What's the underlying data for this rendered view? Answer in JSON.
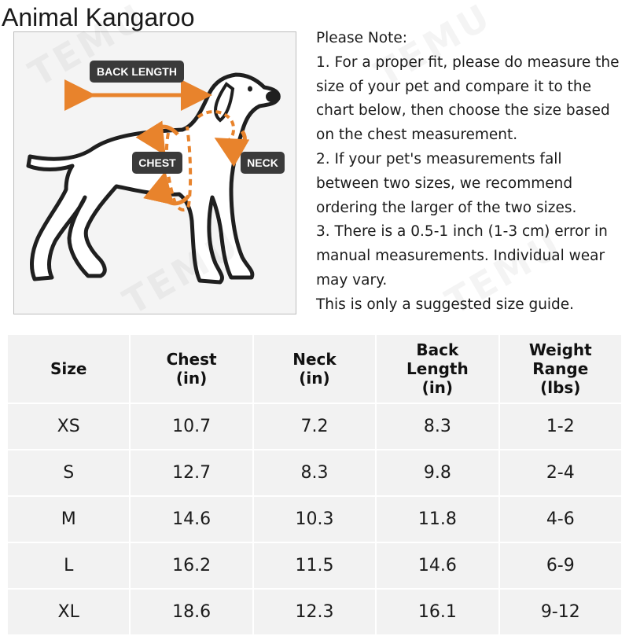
{
  "brand": "Animal Kangaroo",
  "figure": {
    "labels": {
      "back_length": "BACK LENGTH",
      "chest": "CHEST",
      "neck": "NECK"
    },
    "colors": {
      "arrow": "#e8832c",
      "label_bg": "#3a3a3a",
      "outline": "#1f1f1f"
    }
  },
  "watermark": "TEMU",
  "note": {
    "heading": "Please Note:",
    "items": [
      "1. For a proper fit, please do measure the size of your pet and compare it to the chart below, then choose the size based on the chest measurement.",
      "2. If your pet's measurements fall between two sizes, we recommend ordering the larger of the two sizes.",
      "3. There is a 0.5-1 inch (1-3 cm) error in manual measurements. Individual wear may vary."
    ],
    "footer": "This is only a suggested size guide."
  },
  "table": {
    "headers": [
      [
        "Size"
      ],
      [
        "Chest",
        "(in)"
      ],
      [
        "Neck",
        "(in)"
      ],
      [
        "Back",
        "Length",
        "(in)"
      ],
      [
        "Weight",
        "Range",
        "(lbs)"
      ]
    ],
    "rows": [
      [
        "XS",
        "10.7",
        "7.2",
        "8.3",
        "1-2"
      ],
      [
        "S",
        "12.7",
        "8.3",
        "9.8",
        "2-4"
      ],
      [
        "M",
        "14.6",
        "10.3",
        "11.8",
        "4-6"
      ],
      [
        "L",
        "16.2",
        "11.5",
        "14.6",
        "6-9"
      ],
      [
        "XL",
        "18.6",
        "12.3",
        "16.1",
        "9-12"
      ]
    ]
  }
}
